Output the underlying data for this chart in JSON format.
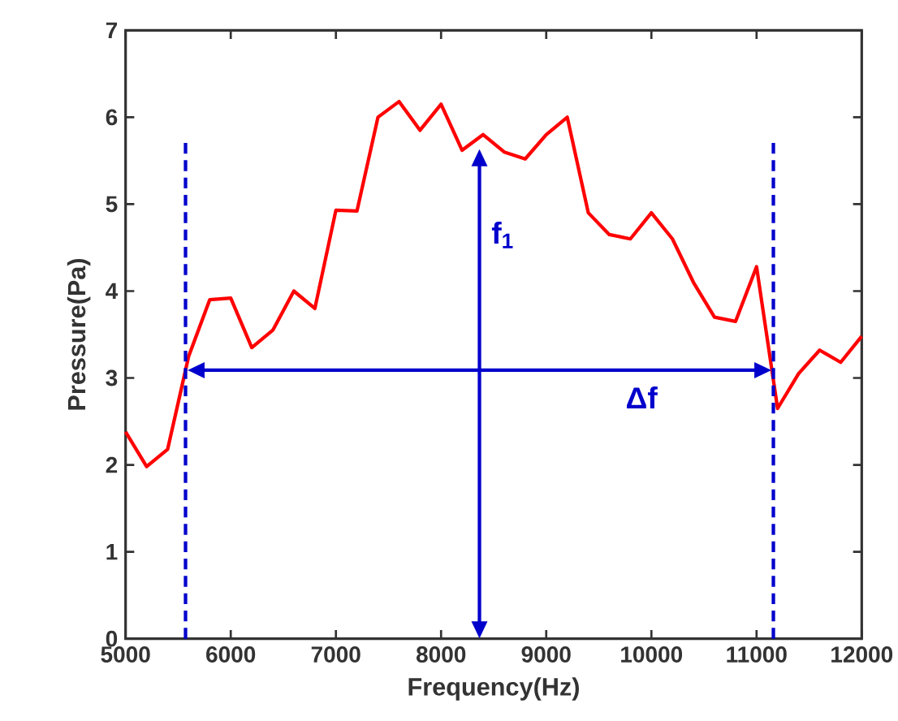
{
  "chart_data": {
    "type": "line",
    "xlabel": "Frequency(Hz)",
    "ylabel": "Pressure(Pa)",
    "xlim": [
      5000,
      12000
    ],
    "xticks": [
      5000,
      6000,
      7000,
      8000,
      9000,
      10000,
      11000,
      12000
    ],
    "ylim": [
      0,
      7
    ],
    "yticks": [
      0,
      1,
      2,
      3,
      4,
      5,
      6,
      7
    ],
    "grid": false,
    "marker": "none",
    "series": [
      {
        "color": "#ff0000",
        "line_style": "solid",
        "x": [
          5000,
          5200,
          5400,
          5600,
          5800,
          6000,
          6200,
          6400,
          6600,
          6800,
          7000,
          7200,
          7400,
          7600,
          7800,
          8000,
          8200,
          8400,
          8600,
          8800,
          9000,
          9200,
          9400,
          9600,
          9800,
          10000,
          10200,
          10400,
          10600,
          10800,
          11000,
          11200,
          11400,
          11600,
          11800,
          12000
        ],
        "values": [
          2.38,
          1.98,
          2.18,
          3.25,
          3.9,
          3.92,
          3.35,
          3.55,
          4.0,
          3.8,
          4.93,
          4.92,
          6.0,
          6.18,
          5.85,
          6.15,
          5.62,
          5.8,
          5.6,
          5.52,
          5.8,
          6.0,
          4.9,
          4.65,
          4.6,
          4.9,
          4.6,
          4.1,
          3.7,
          3.65,
          4.28,
          2.65,
          3.05,
          3.32,
          3.18,
          3.48
        ]
      },
      {
        "color": "#0000cc",
        "line_style": "dashed",
        "x": [
          5570,
          5570
        ],
        "values": [
          0,
          5.75
        ]
      },
      {
        "color": "#0000cc",
        "line_style": "dashed",
        "x": [
          11160,
          11160
        ],
        "values": [
          0,
          5.75
        ]
      }
    ],
    "annotations": [
      "f$_{1}$",
      "Δf"
    ]
  }
}
